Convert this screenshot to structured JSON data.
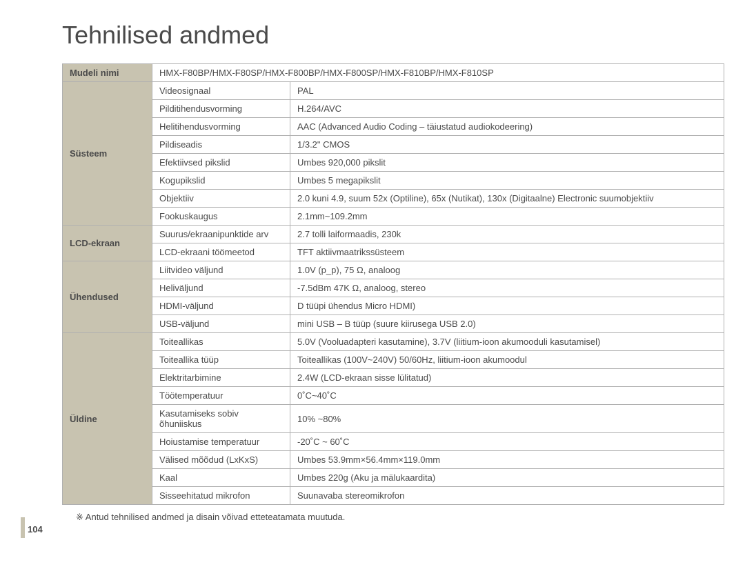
{
  "title": "Tehnilised andmed",
  "page_number": "104",
  "footnote": "※ Antud tehnilised andmed ja disain võivad etteteatamata muutuda.",
  "sections": {
    "model": {
      "label": "Mudeli nimi",
      "value": "HMX-F80BP/HMX-F80SP/HMX-F800BP/HMX-F800SP/HMX-F810BP/HMX-F810SP"
    },
    "system": {
      "label": "Süsteem",
      "rows": [
        {
          "param": "Videosignaal",
          "value": "PAL"
        },
        {
          "param": "Pilditihendusvorming",
          "value": "H.264/AVC"
        },
        {
          "param": "Helitihendusvorming",
          "value": "AAC (Advanced Audio Coding – täiustatud audiokodeering)"
        },
        {
          "param": "Pildiseadis",
          "value": "1/3.2\" CMOS"
        },
        {
          "param": "Efektiivsed pikslid",
          "value": "Umbes 920,000 pikslit"
        },
        {
          "param": "Kogupikslid",
          "value": "Umbes 5 megapikslit"
        },
        {
          "param": "Objektiiv",
          "value": "2.0 kuni 4.9, suum 52x (Optiline), 65x (Nutikat), 130x (Digitaalne) Electronic suumobjektiiv"
        },
        {
          "param": "Fookuskaugus",
          "value": "2.1mm~109.2mm"
        }
      ]
    },
    "lcd": {
      "label": "LCD-ekraan",
      "rows": [
        {
          "param": "Suurus/ekraanipunktide arv",
          "value": "2.7 tolli laiformaadis, 230k"
        },
        {
          "param": "LCD-ekraani töömeetod",
          "value": "TFT aktiivmaatrikssüsteem"
        }
      ]
    },
    "connections": {
      "label": "Ühendused",
      "rows": [
        {
          "param": "Liitvideo väljund",
          "value": "1.0V (p_p), 75 Ω, analoog"
        },
        {
          "param": "Heliväljund",
          "value": "-7.5dBm 47K Ω, analoog, stereo"
        },
        {
          "param": "HDMI-väljund",
          "value": "D tüüpi ühendus Micro HDMI)"
        },
        {
          "param": "USB-väljund",
          "value": "mini USB – B tüüp (suure kiirusega USB 2.0)"
        }
      ]
    },
    "general": {
      "label": "Üldine",
      "rows": [
        {
          "param": "Toiteallikas",
          "value": "5.0V (Vooluadapteri kasutamine), 3.7V (liitium-ioon akumooduli kasutamisel)"
        },
        {
          "param": "Toiteallika tüüp",
          "value": "Toiteallikas (100V~240V) 50/60Hz, liitium-ioon akumoodul"
        },
        {
          "param": "Elektritarbimine",
          "value": "2.4W (LCD-ekraan sisse lülitatud)"
        },
        {
          "param": "Töötemperatuur",
          "value": "0˚C~40˚C"
        },
        {
          "param": "Kasutamiseks sobiv õhuniiskus",
          "value": "10% ~80%"
        },
        {
          "param": "Hoiustamise temperatuur",
          "value": "-20˚C ~ 60˚C"
        },
        {
          "param": "Välised mõõdud (LxKxS)",
          "value": "Umbes 53.9mm×56.4mm×119.0mm"
        },
        {
          "param": "Kaal",
          "value": "Umbes 220g (Aku ja mälukaardita)"
        },
        {
          "param": "Sisseehitatud mikrofon",
          "value": "Suunavaba stereomikrofon"
        }
      ]
    }
  },
  "style": {
    "header_bg": "#c8c3b0",
    "border_color": "#b0b0b0",
    "text_color": "#4a4a4a",
    "title_fontsize": 36,
    "body_fontsize": 13
  }
}
